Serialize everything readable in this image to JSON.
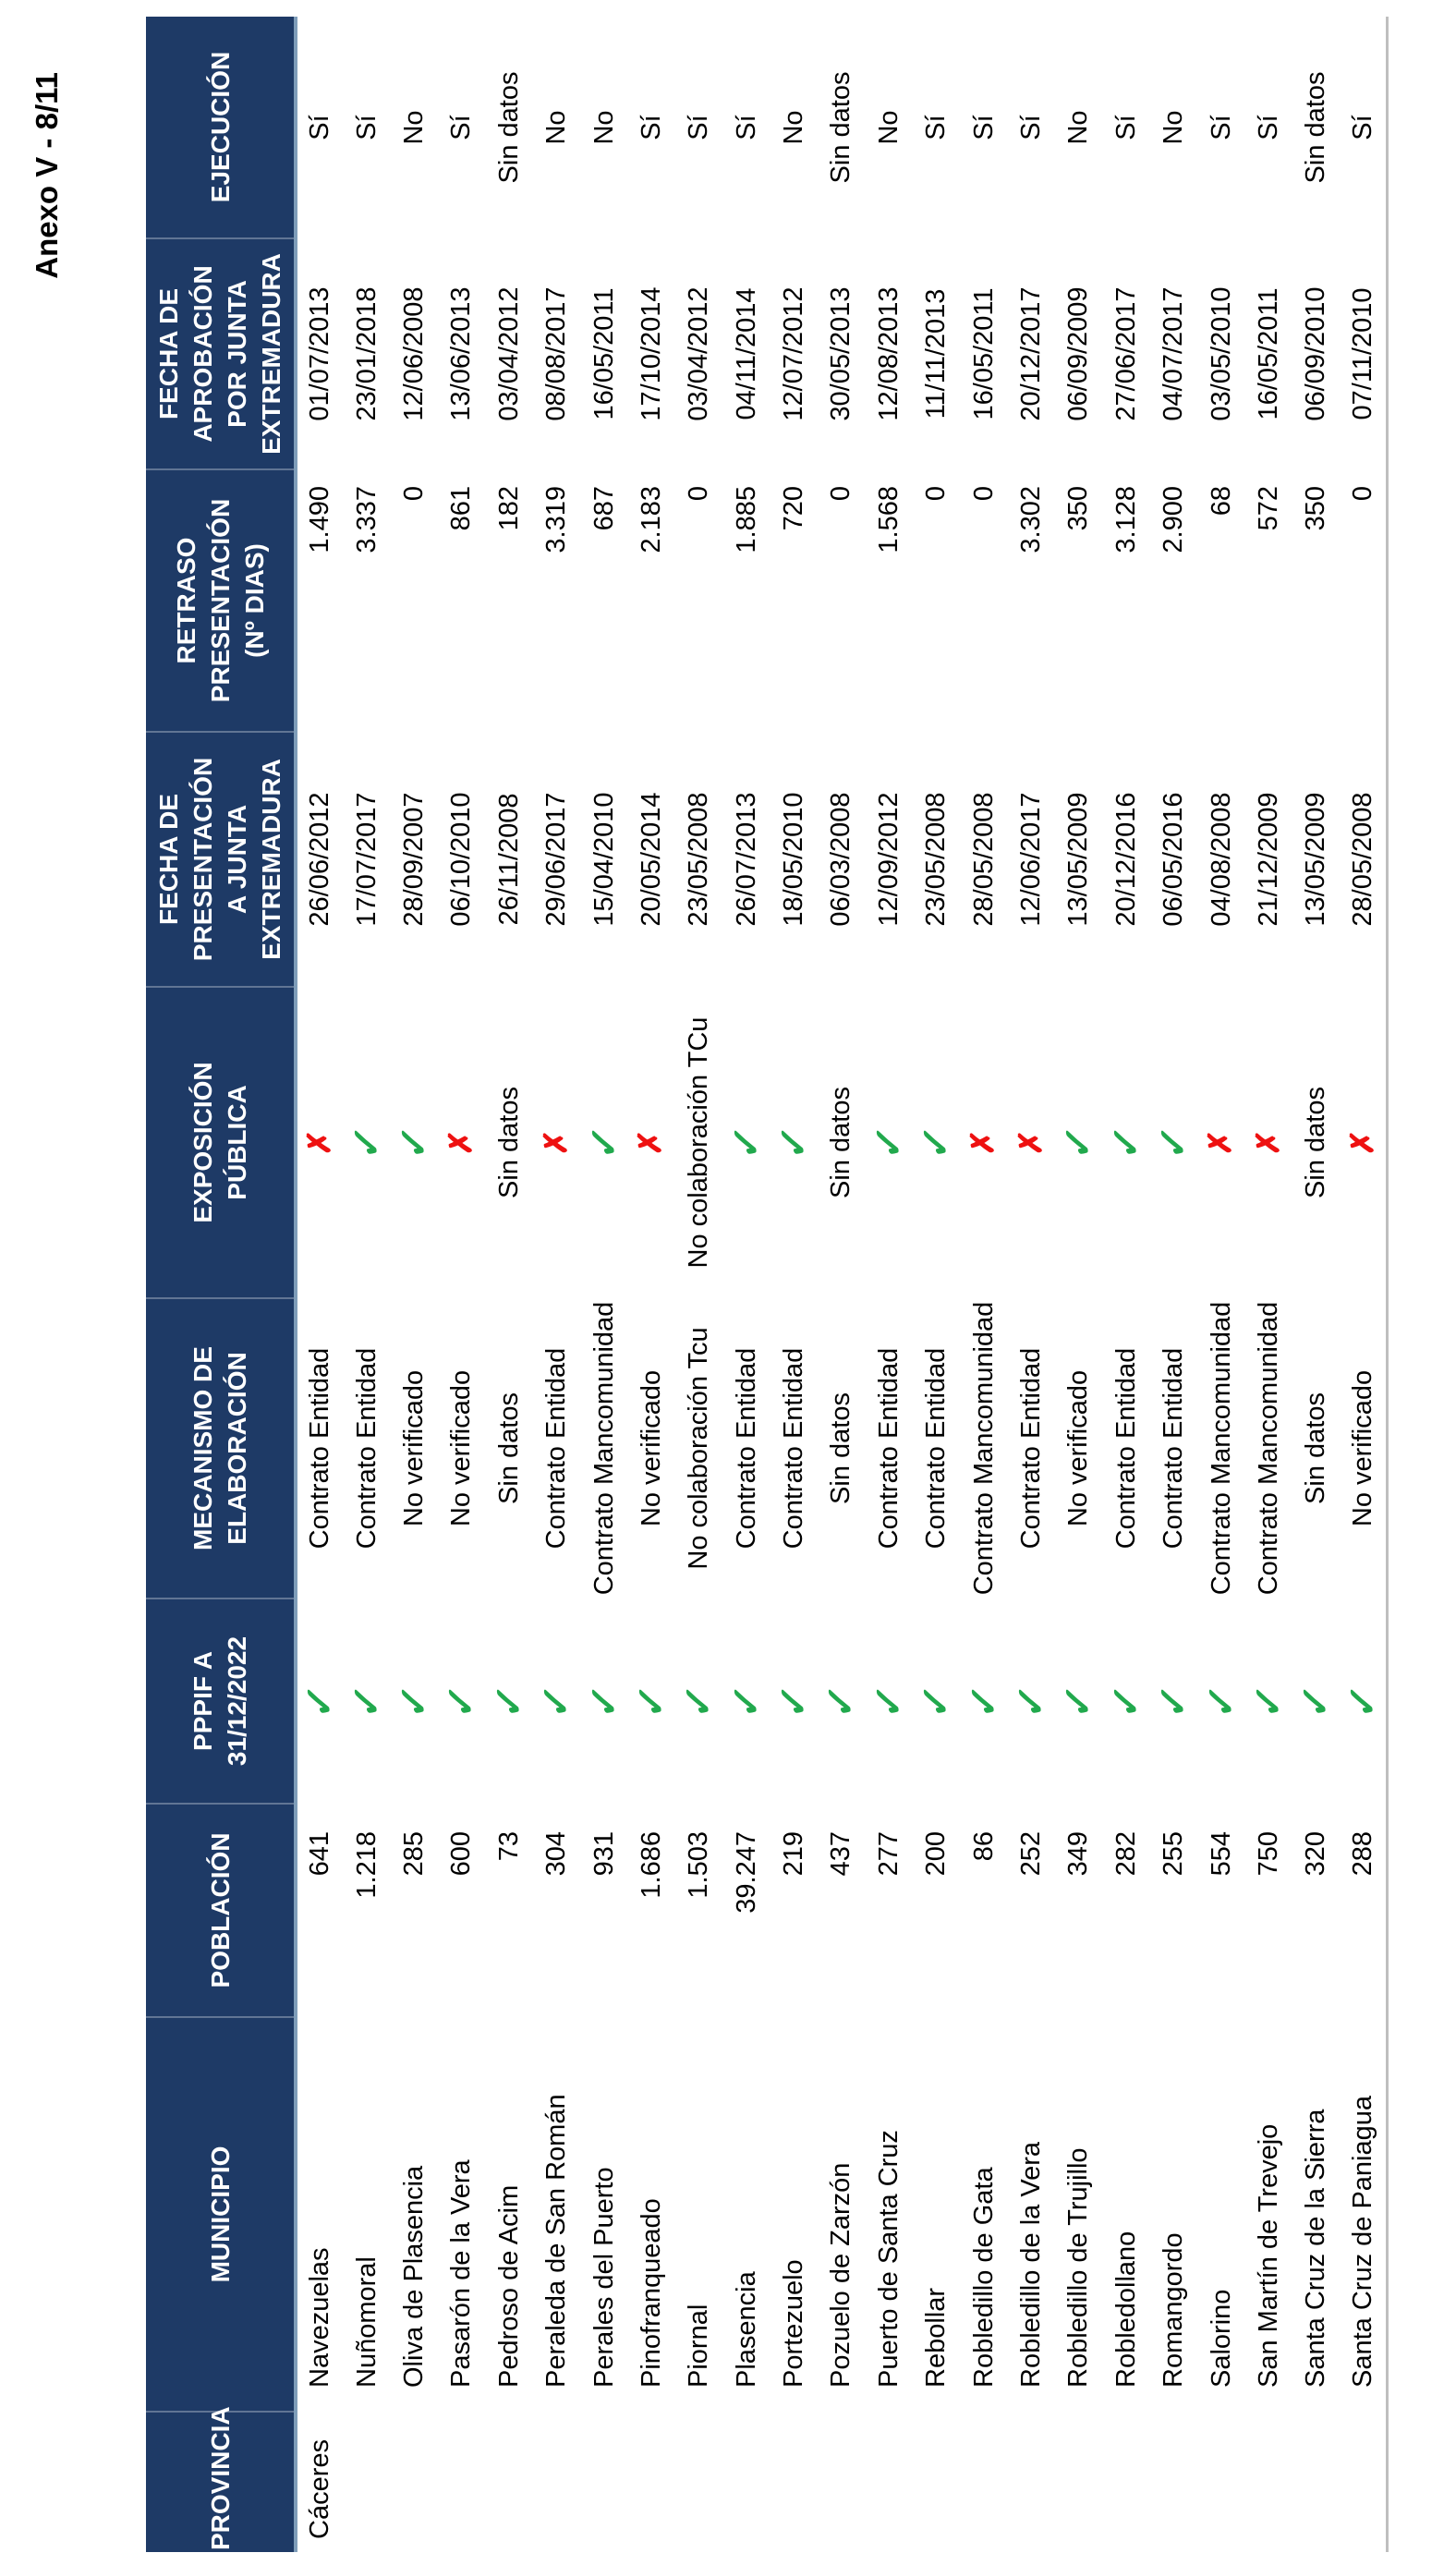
{
  "page": {
    "title": "Anexo V - 8/11"
  },
  "colors": {
    "header_bg": "#1E3A66",
    "header_text": "#FFFFFF",
    "header_underline": "#7F9DB9",
    "table_bottom_line": "#BFBFBF",
    "check_green": "#21A94D",
    "cross_red": "#EE1111"
  },
  "icons": {
    "check": "✓",
    "cross": "✗"
  },
  "table": {
    "province": "Cáceres",
    "headers": [
      {
        "key": "provincia",
        "lines": [
          "PROVINCIA"
        ]
      },
      {
        "key": "municipio",
        "lines": [
          "MUNICIPIO"
        ]
      },
      {
        "key": "poblacion",
        "lines": [
          "POBLACIÓN"
        ]
      },
      {
        "key": "pppif",
        "lines": [
          "PPPIF A",
          "31/12/2022"
        ]
      },
      {
        "key": "mecanismo",
        "lines": [
          "MECANISMO DE",
          "ELABORACIÓN"
        ]
      },
      {
        "key": "exposicion",
        "lines": [
          "EXPOSICIÓN",
          "PÚBLICA"
        ]
      },
      {
        "key": "fpresent",
        "lines": [
          "FECHA DE",
          "PRESENTACIÓN",
          "A JUNTA",
          "EXTREMADURA"
        ]
      },
      {
        "key": "retraso",
        "lines": [
          "RETRASO",
          "PRESENTACIÓN",
          "(Nº DIAS)"
        ]
      },
      {
        "key": "faprob",
        "lines": [
          "FECHA DE",
          "APROBACIÓN",
          "POR JUNTA",
          "EXTREMADURA"
        ]
      },
      {
        "key": "ejecucion",
        "lines": [
          "EJECUCIÓN"
        ]
      }
    ],
    "rows": [
      {
        "municipio": "Navezuelas",
        "poblacion": "641",
        "pppif": "check",
        "mecanismo": "Contrato Entidad",
        "exposicion": "cross",
        "fpresent": "26/06/2012",
        "retraso": "1.490",
        "faprob": "01/07/2013",
        "ejecucion": "Sí"
      },
      {
        "municipio": "Nuñomoral",
        "poblacion": "1.218",
        "pppif": "check",
        "mecanismo": "Contrato Entidad",
        "exposicion": "check",
        "fpresent": "17/07/2017",
        "retraso": "3.337",
        "faprob": "23/01/2018",
        "ejecucion": "Sí"
      },
      {
        "municipio": "Oliva de Plasencia",
        "poblacion": "285",
        "pppif": "check",
        "mecanismo": "No verificado",
        "exposicion": "check",
        "fpresent": "28/09/2007",
        "retraso": "0",
        "faprob": "12/06/2008",
        "ejecucion": "No"
      },
      {
        "municipio": "Pasarón de la Vera",
        "poblacion": "600",
        "pppif": "check",
        "mecanismo": "No verificado",
        "exposicion": "cross",
        "fpresent": "06/10/2010",
        "retraso": "861",
        "faprob": "13/06/2013",
        "ejecucion": "Sí"
      },
      {
        "municipio": "Pedroso de Acim",
        "poblacion": "73",
        "pppif": "check",
        "mecanismo": "Sin datos",
        "exposicion": "Sin datos",
        "fpresent": "26/11/2008",
        "retraso": "182",
        "faprob": "03/04/2012",
        "ejecucion": "Sin datos"
      },
      {
        "municipio": "Peraleda de San Román",
        "poblacion": "304",
        "pppif": "check",
        "mecanismo": "Contrato Entidad",
        "exposicion": "cross",
        "fpresent": "29/06/2017",
        "retraso": "3.319",
        "faprob": "08/08/2017",
        "ejecucion": "No"
      },
      {
        "municipio": "Perales del Puerto",
        "poblacion": "931",
        "pppif": "check",
        "mecanismo": "Contrato Mancomunidad",
        "exposicion": "check",
        "fpresent": "15/04/2010",
        "retraso": "687",
        "faprob": "16/05/2011",
        "ejecucion": "No"
      },
      {
        "municipio": "Pinofranqueado",
        "poblacion": "1.686",
        "pppif": "check",
        "mecanismo": "No verificado",
        "exposicion": "cross",
        "fpresent": "20/05/2014",
        "retraso": "2.183",
        "faprob": "17/10/2014",
        "ejecucion": "Sí"
      },
      {
        "municipio": "Piornal",
        "poblacion": "1.503",
        "pppif": "check",
        "mecanismo": "No colaboración Tcu",
        "exposicion": "No colaboración TCu",
        "fpresent": "23/05/2008",
        "retraso": "0",
        "faprob": "03/04/2012",
        "ejecucion": "Sí"
      },
      {
        "municipio": "Plasencia",
        "poblacion": "39.247",
        "pppif": "check",
        "mecanismo": "Contrato Entidad",
        "exposicion": "check",
        "fpresent": "26/07/2013",
        "retraso": "1.885",
        "faprob": "04/11/2014",
        "ejecucion": "Sí"
      },
      {
        "municipio": "Portezuelo",
        "poblacion": "219",
        "pppif": "check",
        "mecanismo": "Contrato Entidad",
        "exposicion": "check",
        "fpresent": "18/05/2010",
        "retraso": "720",
        "faprob": "12/07/2012",
        "ejecucion": "No"
      },
      {
        "municipio": "Pozuelo de Zarzón",
        "poblacion": "437",
        "pppif": "check",
        "mecanismo": "Sin datos",
        "exposicion": "Sin datos",
        "fpresent": "06/03/2008",
        "retraso": "0",
        "faprob": "30/05/2013",
        "ejecucion": "Sin datos"
      },
      {
        "municipio": "Puerto de Santa Cruz",
        "poblacion": "277",
        "pppif": "check",
        "mecanismo": "Contrato Entidad",
        "exposicion": "check",
        "fpresent": "12/09/2012",
        "retraso": "1.568",
        "faprob": "12/08/2013",
        "ejecucion": "No"
      },
      {
        "municipio": "Rebollar",
        "poblacion": "200",
        "pppif": "check",
        "mecanismo": "Contrato Entidad",
        "exposicion": "check",
        "fpresent": "23/05/2008",
        "retraso": "0",
        "faprob": "11/11/2013",
        "ejecucion": "Sí"
      },
      {
        "municipio": "Robledillo de Gata",
        "poblacion": "86",
        "pppif": "check",
        "mecanismo": "Contrato Mancomunidad",
        "exposicion": "cross",
        "fpresent": "28/05/2008",
        "retraso": "0",
        "faprob": "16/05/2011",
        "ejecucion": "Sí"
      },
      {
        "municipio": "Robledillo de la Vera",
        "poblacion": "252",
        "pppif": "check",
        "mecanismo": "Contrato Entidad",
        "exposicion": "cross",
        "fpresent": "12/06/2017",
        "retraso": "3.302",
        "faprob": "20/12/2017",
        "ejecucion": "Sí"
      },
      {
        "municipio": "Robledillo de Trujillo",
        "poblacion": "349",
        "pppif": "check",
        "mecanismo": "No verificado",
        "exposicion": "check",
        "fpresent": "13/05/2009",
        "retraso": "350",
        "faprob": "06/09/2009",
        "ejecucion": "No"
      },
      {
        "municipio": "Robledollano",
        "poblacion": "282",
        "pppif": "check",
        "mecanismo": "Contrato Entidad",
        "exposicion": "check",
        "fpresent": "20/12/2016",
        "retraso": "3.128",
        "faprob": "27/06/2017",
        "ejecucion": "Sí"
      },
      {
        "municipio": "Romangordo",
        "poblacion": "255",
        "pppif": "check",
        "mecanismo": "Contrato Entidad",
        "exposicion": "check",
        "fpresent": "06/05/2016",
        "retraso": "2.900",
        "faprob": "04/07/2017",
        "ejecucion": "No"
      },
      {
        "municipio": "Salorino",
        "poblacion": "554",
        "pppif": "check",
        "mecanismo": "Contrato Mancomunidad",
        "exposicion": "cross",
        "fpresent": "04/08/2008",
        "retraso": "68",
        "faprob": "03/05/2010",
        "ejecucion": "Sí"
      },
      {
        "municipio": "San Martín de Trevejo",
        "poblacion": "750",
        "pppif": "check",
        "mecanismo": "Contrato Mancomunidad",
        "exposicion": "cross",
        "fpresent": "21/12/2009",
        "retraso": "572",
        "faprob": "16/05/2011",
        "ejecucion": "Sí"
      },
      {
        "municipio": "Santa Cruz de la Sierra",
        "poblacion": "320",
        "pppif": "check",
        "mecanismo": "Sin datos",
        "exposicion": "Sin datos",
        "fpresent": "13/05/2009",
        "retraso": "350",
        "faprob": "06/09/2010",
        "ejecucion": "Sin datos"
      },
      {
        "municipio": "Santa Cruz de Paniagua",
        "poblacion": "288",
        "pppif": "check",
        "mecanismo": "No verificado",
        "exposicion": "cross",
        "fpresent": "28/05/2008",
        "retraso": "0",
        "faprob": "07/11/2010",
        "ejecucion": "Sí"
      }
    ]
  }
}
